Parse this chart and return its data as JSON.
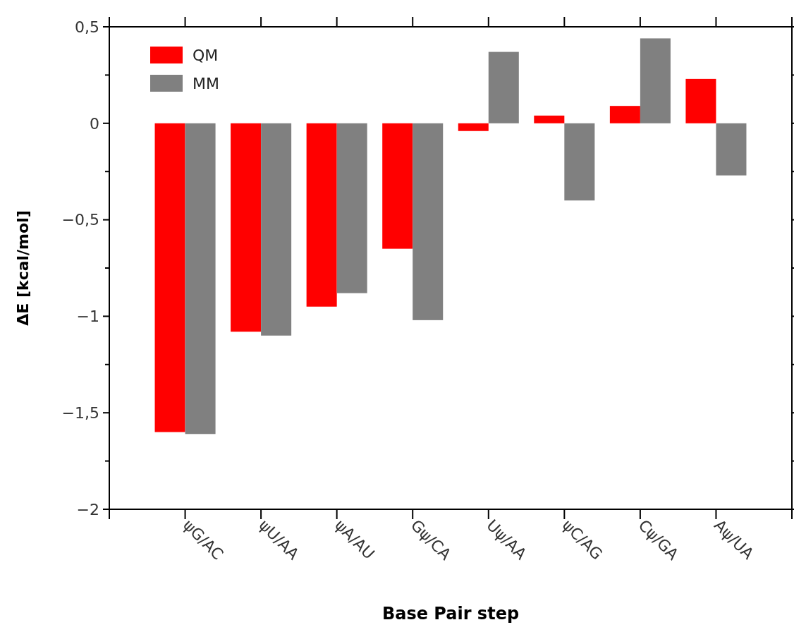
{
  "chart_data": {
    "type": "bar",
    "xlabel": "Base Pair step",
    "ylabel": "ΔE [kcal/mol]",
    "categories": [
      "ψG/AC",
      "ψU/AA",
      "ψA/AU",
      "Gψ/CA",
      "Uψ/AA",
      "ψC/AG",
      "Cψ/GA",
      "Aψ/UA"
    ],
    "series": [
      {
        "name": "QM",
        "color": "#ff0000",
        "values": [
          -1.6,
          -1.08,
          -0.95,
          -0.65,
          -0.04,
          0.04,
          0.09,
          0.23
        ]
      },
      {
        "name": "MM",
        "color": "#808080",
        "values": [
          -1.61,
          -1.1,
          -0.88,
          -1.02,
          0.37,
          -0.4,
          0.44,
          -0.27
        ]
      }
    ],
    "ylim": [
      -2,
      0.5
    ],
    "yticks": [
      {
        "value": -2,
        "label": "−2"
      },
      {
        "value": -1.75,
        "label": null
      },
      {
        "value": -1.5,
        "label": "−1,5"
      },
      {
        "value": -1.25,
        "label": null
      },
      {
        "value": -1,
        "label": "−1"
      },
      {
        "value": -0.75,
        "label": null
      },
      {
        "value": -0.5,
        "label": "−0,5"
      },
      {
        "value": -0.25,
        "label": null
      },
      {
        "value": 0,
        "label": "0"
      },
      {
        "value": 0.25,
        "label": null
      },
      {
        "value": 0.5,
        "label": "0,5"
      }
    ],
    "grid": false,
    "legend": "top left"
  }
}
